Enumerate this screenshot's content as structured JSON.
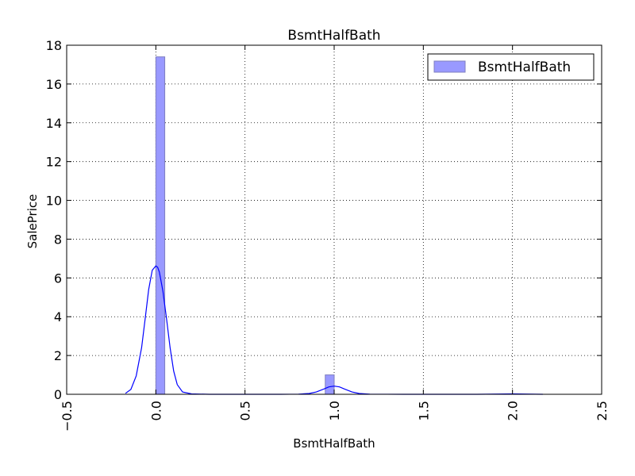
{
  "chart_data": {
    "type": "bar",
    "title": "BsmtHalfBath",
    "xlabel": "BsmtHalfBath",
    "ylabel": "SalePrice",
    "xlim": [
      -0.5,
      2.5
    ],
    "ylim": [
      0,
      18
    ],
    "xticks": [
      "−0.5",
      "0.0",
      "0.5",
      "1.0",
      "1.5",
      "2.0",
      "2.5"
    ],
    "xtick_values": [
      -0.5,
      0.0,
      0.5,
      1.0,
      1.5,
      2.0,
      2.5
    ],
    "yticks": [
      "0",
      "2",
      "4",
      "6",
      "8",
      "10",
      "12",
      "14",
      "16",
      "18"
    ],
    "ytick_values": [
      0,
      2,
      4,
      6,
      8,
      10,
      12,
      14,
      16,
      18
    ],
    "grid": true,
    "legend": {
      "position": "top-right",
      "entries": [
        "BsmtHalfBath"
      ]
    },
    "histogram": {
      "name": "BsmtHalfBath",
      "color": "#9999ff",
      "edge_color": "#7f7fbf",
      "bins": [
        {
          "x0": 0.0,
          "x1": 0.05,
          "value": 17.4
        },
        {
          "x0": 0.95,
          "x1": 1.0,
          "value": 1.0
        }
      ]
    },
    "kde": {
      "color": "#0000ff",
      "x": [
        -0.17,
        -0.14,
        -0.11,
        -0.08,
        -0.06,
        -0.04,
        -0.02,
        0.0,
        0.01,
        0.02,
        0.04,
        0.06,
        0.08,
        0.1,
        0.12,
        0.15,
        0.2,
        0.3,
        0.5,
        0.7,
        0.8,
        0.86,
        0.9,
        0.94,
        0.97,
        1.0,
        1.03,
        1.06,
        1.1,
        1.14,
        1.2,
        1.4,
        1.8,
        2.0,
        2.17
      ],
      "y": [
        0.05,
        0.25,
        0.95,
        2.4,
        3.9,
        5.4,
        6.4,
        6.62,
        6.55,
        6.3,
        5.3,
        3.9,
        2.4,
        1.2,
        0.5,
        0.12,
        0.02,
        0.0,
        0.0,
        0.0,
        0.01,
        0.04,
        0.12,
        0.26,
        0.38,
        0.42,
        0.38,
        0.26,
        0.12,
        0.04,
        0.01,
        0.0,
        0.0,
        0.02,
        0.0
      ]
    }
  }
}
